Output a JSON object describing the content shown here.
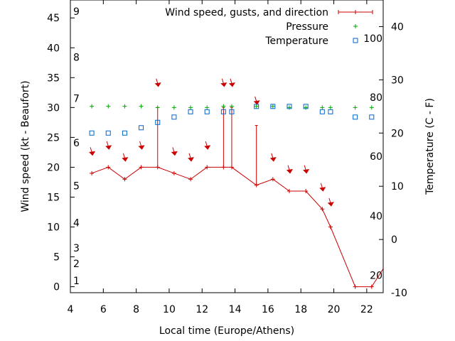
{
  "colors": {
    "wind": "#cc0000",
    "pressure": "#00aa00",
    "temperature": "#0066cc",
    "axis": "#000000"
  },
  "chart_data": {
    "type": "line",
    "xlabel": "Local time (Europe/Athens)",
    "ylabel_left": "Wind speed (kt - Beaufort)",
    "ylabel_right": "Temperature (C - F)",
    "xlim": [
      4,
      23
    ],
    "ylim_left": [
      -1,
      48
    ],
    "ylim_right": [
      -10,
      45
    ],
    "x_ticks": [
      4,
      6,
      8,
      10,
      12,
      14,
      16,
      18,
      20,
      22
    ],
    "y_left_ticks": [
      0,
      5,
      10,
      15,
      20,
      25,
      30,
      35,
      40,
      45
    ],
    "y_right_ticks": [
      -10,
      0,
      10,
      20,
      30,
      40
    ],
    "beaufort_labels": [
      {
        "label": "1",
        "kt": 1
      },
      {
        "label": "2",
        "kt": 3.9
      },
      {
        "label": "3",
        "kt": 6.5
      },
      {
        "label": "4",
        "kt": 10.7
      },
      {
        "label": "5",
        "kt": 16.9
      },
      {
        "label": "6",
        "kt": 24.1
      },
      {
        "label": "7",
        "kt": 31.5
      },
      {
        "label": "8",
        "kt": 38.4
      },
      {
        "label": "9",
        "kt": 46.1
      }
    ],
    "fahrenheit_labels": [
      {
        "label": "20",
        "c": -6.7
      },
      {
        "label": "40",
        "c": 4.4
      },
      {
        "label": "60",
        "c": 15.6
      },
      {
        "label": "80",
        "c": 26.7
      },
      {
        "label": "100",
        "c": 37.8
      }
    ],
    "legend": [
      {
        "key": "wind",
        "label": "Wind speed, gusts, and direction"
      },
      {
        "key": "pressure",
        "label": "Pressure"
      },
      {
        "key": "temperature",
        "label": "Temperature"
      }
    ],
    "series": [
      {
        "name": "Wind speed, gusts, and direction",
        "x": [
          5.3,
          6.3,
          7.3,
          8.3,
          9.3,
          10.3,
          11.3,
          12.3,
          13.3,
          13.8,
          15.3,
          16.3,
          17.3,
          18.3,
          19.3,
          19.8,
          21.3,
          22.3,
          23.0
        ],
        "y": [
          19,
          20,
          18,
          20,
          20,
          19,
          18,
          20,
          20,
          20,
          17,
          18,
          16,
          16,
          13,
          10,
          0,
          0,
          3
        ],
        "gusts": [
          null,
          null,
          null,
          null,
          30,
          null,
          null,
          null,
          30,
          30,
          27,
          null,
          null,
          null,
          null,
          null,
          null,
          null,
          null
        ],
        "direction_markers": [
          {
            "x": 5.3,
            "y": 22.5
          },
          {
            "x": 6.3,
            "y": 23.5
          },
          {
            "x": 7.3,
            "y": 21.5
          },
          {
            "x": 8.3,
            "y": 23.5
          },
          {
            "x": 9.3,
            "y": 34
          },
          {
            "x": 10.3,
            "y": 22.5
          },
          {
            "x": 11.3,
            "y": 21.5
          },
          {
            "x": 12.3,
            "y": 23.5
          },
          {
            "x": 13.3,
            "y": 34
          },
          {
            "x": 13.8,
            "y": 34
          },
          {
            "x": 15.3,
            "y": 31
          },
          {
            "x": 16.3,
            "y": 21.5
          },
          {
            "x": 17.3,
            "y": 19.5
          },
          {
            "x": 18.3,
            "y": 19.5
          },
          {
            "x": 19.3,
            "y": 16.5
          },
          {
            "x": 19.8,
            "y": 14
          }
        ]
      },
      {
        "name": "Pressure",
        "x": [
          5.3,
          6.3,
          7.3,
          8.3,
          9.3,
          10.3,
          11.3,
          12.3,
          13.3,
          13.8,
          15.3,
          16.3,
          17.3,
          18.3,
          19.3,
          19.8,
          21.3,
          22.3
        ],
        "y": [
          30.2,
          30.2,
          30.2,
          30.2,
          30.0,
          30.0,
          30.0,
          30.0,
          30.2,
          30.2,
          30.2,
          30.2,
          30.0,
          30.0,
          30.0,
          30.0,
          30.0,
          30.0
        ]
      },
      {
        "name": "Temperature",
        "x": [
          5.3,
          6.3,
          7.3,
          8.3,
          9.3,
          10.3,
          11.3,
          12.3,
          13.3,
          13.8,
          15.3,
          16.3,
          17.3,
          18.3,
          19.3,
          19.8,
          21.3,
          22.3
        ],
        "y": [
          20,
          20,
          20,
          21,
          22,
          23,
          24,
          24,
          24,
          24,
          25,
          25,
          25,
          25,
          24,
          24,
          23,
          23
        ]
      }
    ]
  }
}
